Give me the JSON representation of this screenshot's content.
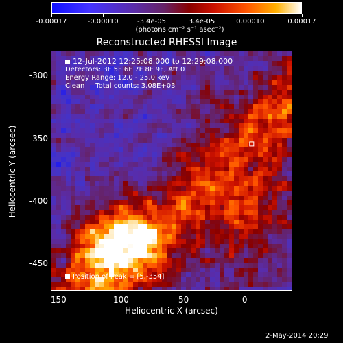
{
  "chart_data": {
    "type": "heatmap",
    "title": "Reconstructed RHESSI Image",
    "xlabel": "Heliocentric X (arcsec)",
    "ylabel": "Heliocentric Y (arcsec)",
    "xlim": [
      -155,
      38
    ],
    "ylim": [
      -472,
      -280
    ],
    "x_ticks": [
      "-150",
      "-100",
      "-50",
      "0"
    ],
    "y_ticks": [
      "-300",
      "-350",
      "-400",
      "-450"
    ],
    "x_tick_values": [
      -150,
      -100,
      -50,
      0
    ],
    "y_tick_values": [
      -300,
      -350,
      -400,
      -450
    ],
    "colorbar": {
      "tick_labels": [
        "-0.00017",
        "-0.00010",
        "-3.4e-05",
        "3.4e-05",
        "0.00010",
        "0.00017"
      ],
      "tick_values": [
        -0.00017,
        -0.0001,
        -3.4e-05,
        3.4e-05,
        0.0001,
        0.00017
      ],
      "range": [
        -0.00017,
        0.00017
      ],
      "units": "(photons cm⁻² s⁻¹ asec⁻²)",
      "colormap_colors": [
        "#1010ff",
        "#5a2ca8",
        "#662266",
        "#880000",
        "#cc1100",
        "#ff5500",
        "#ffb000",
        "#ffffff"
      ]
    },
    "annotations": [
      "12-Jul-2012 12:25:08.000 to 12:29:08.000",
      "Detectors: 3F 5F 6F 7F 8F 9F, Att 0",
      "Energy Range: 12.0 - 25.0 keV",
      "Clean     Total counts: 3.08E+03"
    ],
    "peak_label": "Position of Peak = [5,-354]",
    "peak_position": [
      5,
      -354
    ],
    "timestamp": "2-May-2014 20:29"
  }
}
